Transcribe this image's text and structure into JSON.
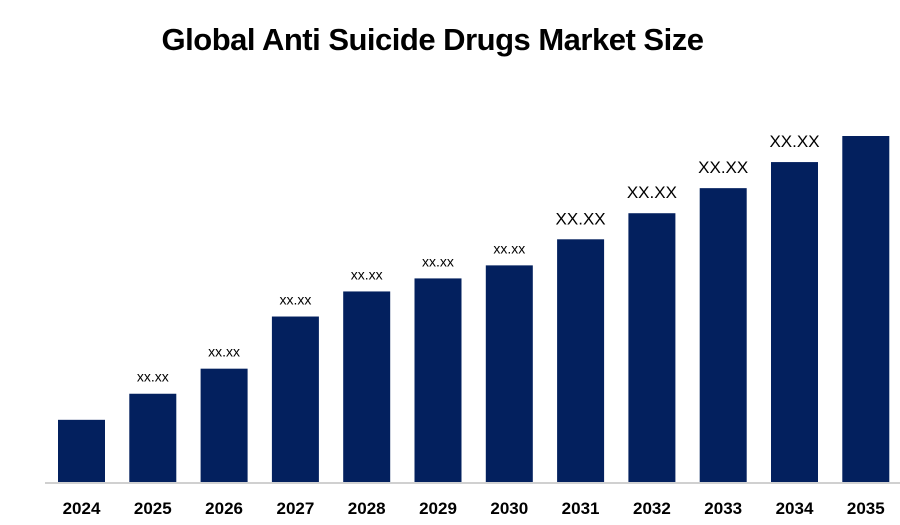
{
  "chart_data": {
    "type": "bar",
    "title": "Global Anti Suicide Drugs Market Size",
    "xlabel": "",
    "ylabel": "",
    "categories": [
      "2024",
      "2025",
      "2026",
      "2027",
      "2028",
      "2029",
      "2030",
      "2031",
      "2032",
      "2033",
      "2034",
      "2035"
    ],
    "values": [
      62,
      88,
      113,
      165,
      190,
      203,
      216,
      242,
      268,
      293,
      319,
      345
    ],
    "data_labels": [
      "",
      "xx.xx",
      "xx.xx",
      "xx.xx",
      "xx.xx",
      "xx.xx",
      "xx.xx",
      "XX.XX",
      "XX.XX",
      "XX.XX",
      "XX.XX",
      ""
    ],
    "ylim": [
      0,
      345
    ],
    "grid": false,
    "y_axis_shown": false,
    "bar_color": "#03205E",
    "axis_color": "#D0D0D0"
  }
}
